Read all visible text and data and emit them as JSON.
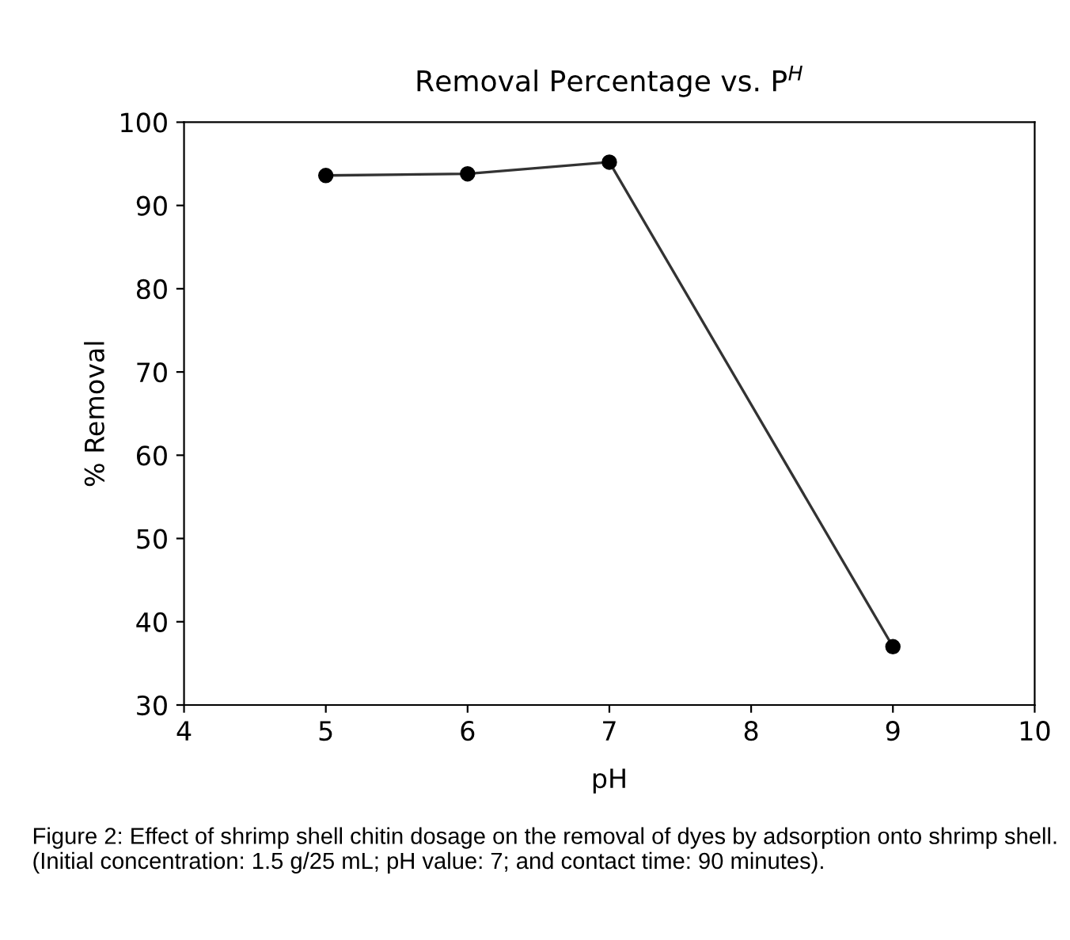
{
  "chart_data": {
    "type": "line",
    "title": "Removal Percentage vs. P$^{H}$",
    "xlabel": "pH",
    "ylabel": "% Removal",
    "x": [
      5,
      6,
      7,
      9
    ],
    "series": [
      {
        "color": "#333333",
        "values": [
          93.6,
          93.8,
          95.2,
          37.0
        ]
      }
    ],
    "xlim": [
      4,
      10
    ],
    "xticks": [
      4,
      5,
      6,
      7,
      8,
      9,
      10
    ],
    "ylim": [
      30,
      100
    ],
    "yticks": [
      30,
      40,
      50,
      60,
      70,
      80,
      90,
      100
    ],
    "grid": false,
    "legend": false,
    "marker": "circle",
    "line_style": "solid",
    "annotations": [
      "Figure 2: Effect of shrimp shell chitin dosage on the removal of dyes by adsorption onto shrimp shell. (Initial concentration: 1.5 g/25 mL; pH value: 7; and contact time: 90 minutes)."
    ]
  }
}
